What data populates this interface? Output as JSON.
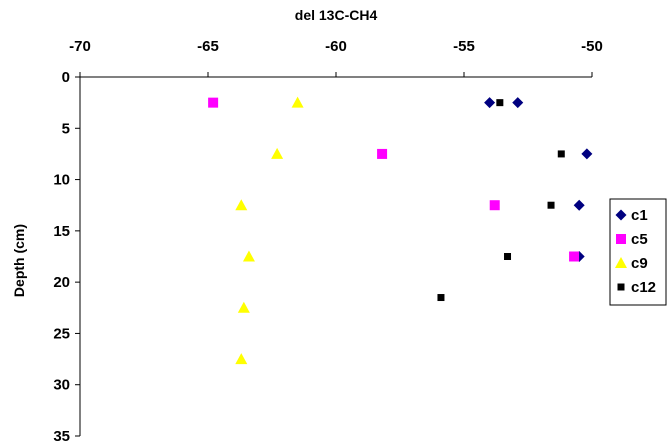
{
  "chart_data": {
    "type": "scatter",
    "title": "",
    "xlabel": "del 13C-CH4",
    "ylabel": "Depth (cm)",
    "x_axis_position": "top",
    "y_axis_inverted": true,
    "xlim": [
      -70,
      -50
    ],
    "ylim": [
      0,
      35
    ],
    "x_ticks": [
      "-70",
      "-65",
      "-60",
      "-55",
      "-50"
    ],
    "y_ticks": [
      "0",
      "5",
      "10",
      "15",
      "20",
      "25",
      "30",
      "35"
    ],
    "grid": false,
    "legend_position": "right",
    "series": [
      {
        "name": "c1",
        "marker": "diamond",
        "color": "#000080",
        "points": [
          {
            "x": -54.0,
            "y": 2.5
          },
          {
            "x": -52.9,
            "y": 2.5
          },
          {
            "x": -50.2,
            "y": 7.5
          },
          {
            "x": -50.5,
            "y": 12.5
          },
          {
            "x": -50.5,
            "y": 17.5
          }
        ]
      },
      {
        "name": "c5",
        "marker": "square",
        "color": "#FF00FF",
        "points": [
          {
            "x": -64.8,
            "y": 2.5
          },
          {
            "x": -58.2,
            "y": 7.5
          },
          {
            "x": -53.8,
            "y": 12.5
          },
          {
            "x": -50.7,
            "y": 17.5
          }
        ]
      },
      {
        "name": "c9",
        "marker": "triangle",
        "color": "#FFFF00",
        "points": [
          {
            "x": -61.5,
            "y": 2.5
          },
          {
            "x": -62.3,
            "y": 7.5
          },
          {
            "x": -63.7,
            "y": 12.5
          },
          {
            "x": -63.4,
            "y": 17.5
          },
          {
            "x": -63.6,
            "y": 22.5
          },
          {
            "x": -63.7,
            "y": 27.5
          }
        ]
      },
      {
        "name": "c12",
        "marker": "square",
        "color": "#000000",
        "points": [
          {
            "x": -53.6,
            "y": 2.5
          },
          {
            "x": -51.2,
            "y": 7.5
          },
          {
            "x": -51.6,
            "y": 12.5
          },
          {
            "x": -53.3,
            "y": 17.5
          },
          {
            "x": -55.9,
            "y": 21.5
          }
        ]
      }
    ]
  }
}
